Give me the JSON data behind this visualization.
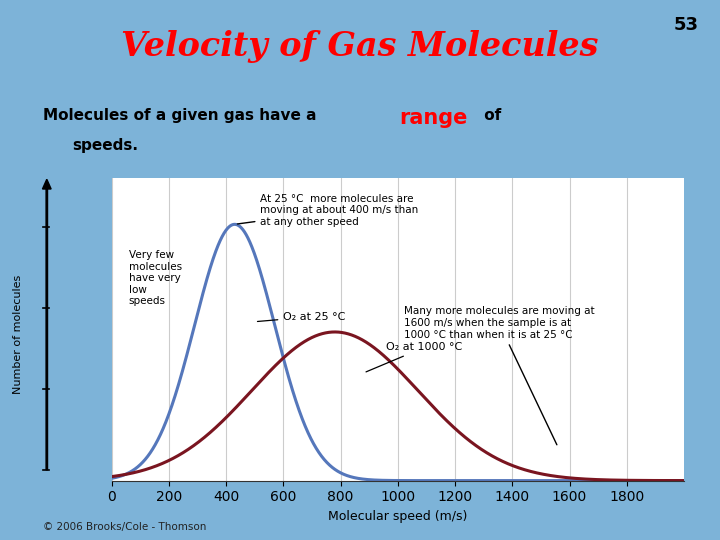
{
  "title": "Velocity of Gas Molecules",
  "slide_number": "53",
  "background_color": "#7db3d8",
  "chart_bg_color": "#e8e8e8",
  "chart_border_color": "#cccccc",
  "curve1": {
    "label": "O₂ at 25 °C",
    "color": "#5577bb",
    "mean": 430,
    "std": 140
  },
  "curve2": {
    "label": "O₂ at 1000 °C",
    "color": "#7a1520",
    "mean": 780,
    "std": 290
  },
  "xlabel": "Molecular speed (m/s)",
  "ylabel": "Number of molecules",
  "xlim": [
    0,
    2000
  ],
  "xticks": [
    0,
    200,
    400,
    600,
    800,
    1000,
    1200,
    1400,
    1600,
    1800
  ],
  "curve2_peak_ratio": 0.58,
  "annotation1": "At 25 °C  more molecules are\nmoving at about 400 m/s than\nat any other speed",
  "annotation2": "Many more molecules are moving at\n1600 m/s when the sample is at\n1000 °C than when it is at 25 °C",
  "annotation3": "Very few\nmolecules\nhave very\nlow\nspeeds",
  "copyright": "© 2006 Brooks/Cole - Thomson"
}
